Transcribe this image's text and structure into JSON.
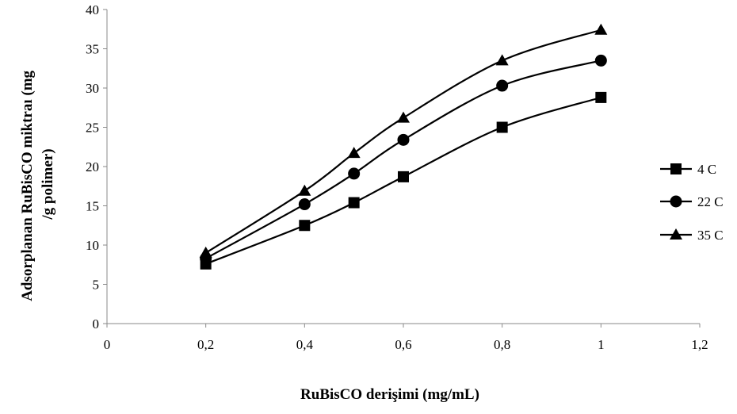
{
  "chart_data": {
    "type": "line",
    "xlabel": "RuBisCO derişimi  (mg/mL)",
    "ylabel_lines": [
      "Adsorplanan  RuBisCO miktraı  (mg",
      "/g polimer)"
    ],
    "xlim": [
      0,
      1.2
    ],
    "ylim": [
      0,
      40
    ],
    "x_ticks": [
      0,
      0.2,
      0.4,
      0.6,
      0.8,
      1,
      1.2
    ],
    "x_tick_labels": [
      "0",
      "0,2",
      "0,4",
      "0,6",
      "0,8",
      "1",
      "1,2"
    ],
    "y_ticks": [
      0,
      5,
      10,
      15,
      20,
      25,
      30,
      35,
      40
    ],
    "y_tick_labels": [
      "0",
      "5",
      "10",
      "15",
      "20",
      "25",
      "30",
      "35",
      "40"
    ],
    "grid": false,
    "legend_position": "right",
    "series": [
      {
        "name": "4 C",
        "marker": "square",
        "color": "#000000",
        "x": [
          0.2,
          0.4,
          0.5,
          0.6,
          0.8,
          1.0
        ],
        "y": [
          7.6,
          12.5,
          15.4,
          18.7,
          25.0,
          28.8
        ]
      },
      {
        "name": "22 C",
        "marker": "circle",
        "color": "#000000",
        "x": [
          0.2,
          0.4,
          0.5,
          0.6,
          0.8,
          1.0
        ],
        "y": [
          8.3,
          15.2,
          19.1,
          23.4,
          30.3,
          33.5
        ]
      },
      {
        "name": "35 C",
        "marker": "triangle",
        "color": "#000000",
        "x": [
          0.2,
          0.4,
          0.5,
          0.6,
          0.8,
          1.0
        ],
        "y": [
          9.0,
          16.9,
          21.7,
          26.2,
          33.5,
          37.4
        ]
      }
    ]
  }
}
